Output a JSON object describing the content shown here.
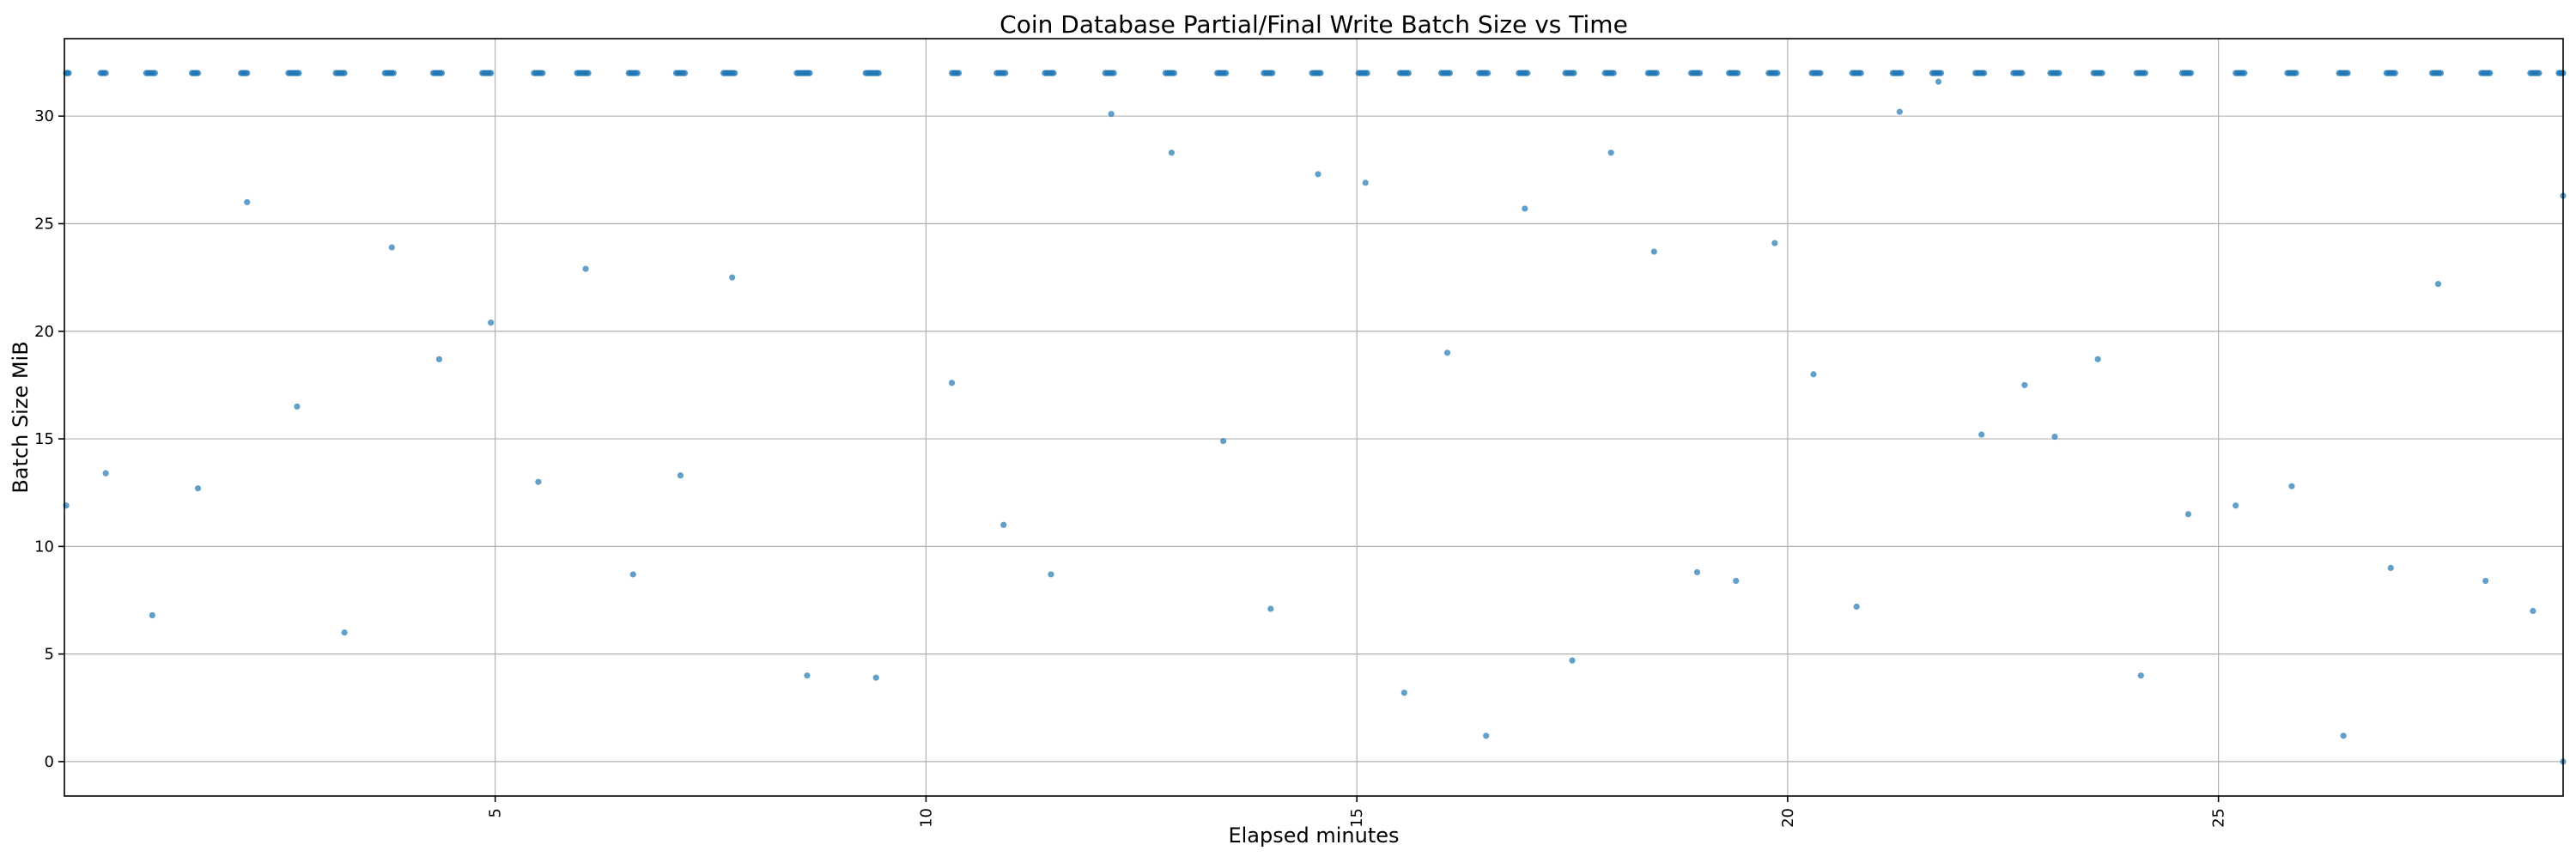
{
  "chart_data": {
    "type": "scatter",
    "title": "Coin Database Partial/Final Write Batch Size vs Time",
    "xlabel": "Elapsed minutes",
    "ylabel": "Batch Size MiB",
    "xlim": [
      0.0,
      29.0
    ],
    "ylim": [
      -1.6,
      33.6
    ],
    "grid": true,
    "marker_color": "#1f77b4",
    "x_ticks": [
      {
        "value": 5,
        "label": "5"
      },
      {
        "value": 10,
        "label": "10"
      },
      {
        "value": 15,
        "label": "15"
      },
      {
        "value": 20,
        "label": "20"
      },
      {
        "value": 25,
        "label": "25"
      }
    ],
    "y_ticks": [
      {
        "value": 0,
        "label": "0"
      },
      {
        "value": 5,
        "label": "5"
      },
      {
        "value": 10,
        "label": "10"
      },
      {
        "value": 15,
        "label": "15"
      },
      {
        "value": 20,
        "label": "20"
      },
      {
        "value": 25,
        "label": "25"
      },
      {
        "value": 30,
        "label": "30"
      }
    ],
    "series": [
      {
        "points": [
          [
            0.02,
            11.9
          ],
          [
            0.48,
            13.4
          ],
          [
            1.02,
            6.8
          ],
          [
            1.55,
            12.7
          ],
          [
            2.12,
            26.0
          ],
          [
            2.7,
            16.5
          ],
          [
            3.25,
            6.0
          ],
          [
            3.8,
            23.9
          ],
          [
            4.35,
            18.7
          ],
          [
            4.95,
            20.4
          ],
          [
            5.5,
            13.0
          ],
          [
            6.05,
            22.9
          ],
          [
            6.6,
            8.7
          ],
          [
            7.15,
            13.3
          ],
          [
            7.75,
            22.5
          ],
          [
            8.62,
            4.0
          ],
          [
            9.42,
            3.9
          ],
          [
            10.3,
            17.6
          ],
          [
            10.9,
            11.0
          ],
          [
            11.45,
            8.7
          ],
          [
            12.15,
            30.1
          ],
          [
            12.85,
            28.3
          ],
          [
            13.45,
            14.9
          ],
          [
            14.0,
            7.1
          ],
          [
            14.55,
            27.3
          ],
          [
            15.1,
            26.9
          ],
          [
            15.55,
            3.2
          ],
          [
            16.05,
            19.0
          ],
          [
            16.5,
            1.2
          ],
          [
            16.95,
            25.7
          ],
          [
            17.5,
            4.7
          ],
          [
            17.95,
            28.3
          ],
          [
            18.45,
            23.7
          ],
          [
            18.95,
            8.8
          ],
          [
            19.4,
            8.4
          ],
          [
            19.85,
            24.1
          ],
          [
            20.3,
            18.0
          ],
          [
            20.8,
            7.2
          ],
          [
            21.3,
            30.2
          ],
          [
            21.75,
            31.6
          ],
          [
            22.25,
            15.2
          ],
          [
            22.75,
            17.5
          ],
          [
            23.1,
            15.1
          ],
          [
            23.6,
            18.7
          ],
          [
            24.1,
            4.0
          ],
          [
            24.65,
            11.5
          ],
          [
            25.2,
            11.9
          ],
          [
            25.85,
            12.8
          ],
          [
            26.45,
            1.2
          ],
          [
            27.0,
            9.0
          ],
          [
            27.55,
            22.2
          ],
          [
            28.1,
            8.4
          ],
          [
            28.65,
            7.0
          ],
          [
            29.0,
            26.3
          ],
          [
            29.0,
            0.0
          ]
        ],
        "full_value": 32.0,
        "full_clusters": [
          {
            "from": 0.02,
            "to": 0.05
          },
          {
            "from": 0.42,
            "to": 0.48
          },
          {
            "from": 0.95,
            "to": 1.05
          },
          {
            "from": 1.48,
            "to": 1.55
          },
          {
            "from": 2.05,
            "to": 2.12
          },
          {
            "from": 2.6,
            "to": 2.72
          },
          {
            "from": 3.15,
            "to": 3.25
          },
          {
            "from": 3.72,
            "to": 3.82
          },
          {
            "from": 4.28,
            "to": 4.38
          },
          {
            "from": 4.85,
            "to": 4.95
          },
          {
            "from": 5.45,
            "to": 5.55
          },
          {
            "from": 5.95,
            "to": 6.08
          },
          {
            "from": 6.55,
            "to": 6.65
          },
          {
            "from": 7.1,
            "to": 7.2
          },
          {
            "from": 7.65,
            "to": 7.78
          },
          {
            "from": 8.5,
            "to": 8.65
          },
          {
            "from": 9.3,
            "to": 9.45
          },
          {
            "from": 10.3,
            "to": 10.38
          },
          {
            "from": 10.82,
            "to": 10.92
          },
          {
            "from": 11.38,
            "to": 11.48
          },
          {
            "from": 12.08,
            "to": 12.18
          },
          {
            "from": 12.78,
            "to": 12.88
          },
          {
            "from": 13.38,
            "to": 13.48
          },
          {
            "from": 13.92,
            "to": 14.02
          },
          {
            "from": 14.48,
            "to": 14.58
          },
          {
            "from": 15.02,
            "to": 15.12
          },
          {
            "from": 15.5,
            "to": 15.6
          },
          {
            "from": 15.98,
            "to": 16.08
          },
          {
            "from": 16.42,
            "to": 16.52
          },
          {
            "from": 16.88,
            "to": 16.98
          },
          {
            "from": 17.42,
            "to": 17.52
          },
          {
            "from": 17.88,
            "to": 17.98
          },
          {
            "from": 18.38,
            "to": 18.48
          },
          {
            "from": 18.88,
            "to": 18.98
          },
          {
            "from": 19.32,
            "to": 19.42
          },
          {
            "from": 19.78,
            "to": 19.88
          },
          {
            "from": 20.28,
            "to": 20.38
          },
          {
            "from": 20.75,
            "to": 20.85
          },
          {
            "from": 21.22,
            "to": 21.32
          },
          {
            "from": 21.68,
            "to": 21.78
          },
          {
            "from": 22.18,
            "to": 22.28
          },
          {
            "from": 22.62,
            "to": 22.72
          },
          {
            "from": 23.05,
            "to": 23.15
          },
          {
            "from": 23.55,
            "to": 23.65
          },
          {
            "from": 24.05,
            "to": 24.15
          },
          {
            "from": 24.58,
            "to": 24.68
          },
          {
            "from": 25.2,
            "to": 25.3
          },
          {
            "from": 25.8,
            "to": 25.9
          },
          {
            "from": 26.4,
            "to": 26.5
          },
          {
            "from": 26.95,
            "to": 27.05
          },
          {
            "from": 27.48,
            "to": 27.58
          },
          {
            "from": 28.05,
            "to": 28.15
          },
          {
            "from": 28.62,
            "to": 28.72
          },
          {
            "from": 28.95,
            "to": 29.0
          }
        ]
      }
    ]
  }
}
